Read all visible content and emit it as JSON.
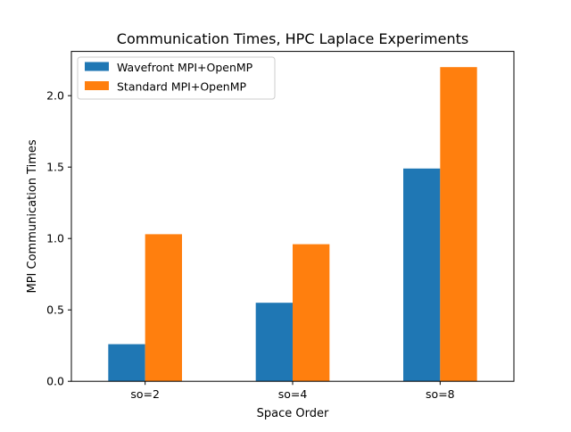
{
  "chart_data": {
    "type": "bar",
    "title": "Communication Times, HPC Laplace Experiments",
    "xlabel": "Space Order",
    "ylabel": "MPI Communication Times",
    "categories": [
      "so=2",
      "so=4",
      "so=8"
    ],
    "series": [
      {
        "name": "Wavefront MPI+OpenMP",
        "color": "#1f77b4",
        "values": [
          0.26,
          0.55,
          1.49
        ]
      },
      {
        "name": "Standard MPI+OpenMP",
        "color": "#ff7f0e",
        "values": [
          1.03,
          0.96,
          2.2
        ]
      }
    ],
    "ylim": [
      0,
      2.31
    ],
    "yticks": [
      0.0,
      0.5,
      1.0,
      1.5,
      2.0
    ],
    "ytick_labels": [
      "0.0",
      "0.5",
      "1.0",
      "1.5",
      "2.0"
    ],
    "grid": false,
    "legend_position": "top-left"
  }
}
